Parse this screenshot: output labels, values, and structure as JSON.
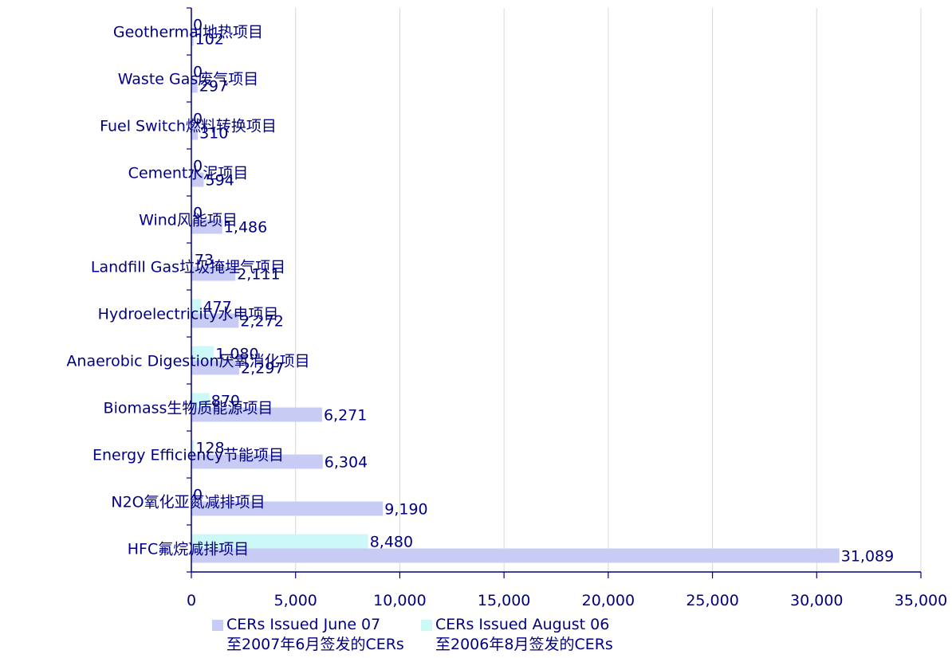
{
  "chart_data": {
    "type": "bar",
    "orientation": "horizontal",
    "categories": [
      "Geothermal地热项目",
      "Waste Gas废气项目",
      "Fuel Switch燃料转换项目",
      "Cement水泥项目",
      "Wind风能项目",
      "Landfill Gas垃圾掩埋气项目",
      "Hydroelectricity水电项目",
      "Anaerobic Digestion厌氧消化项目",
      "Biomass生物质能源项目",
      "Energy Efficiency节能项目",
      "N2O氧化亚氮减排项目",
      "HFC氟烷减排项目"
    ],
    "series": [
      {
        "name": "CERs Issued June 07",
        "name_line2": "至2007年6月签发的CERs",
        "color": "#c8ccf4",
        "values": [
          102,
          297,
          310,
          594,
          1486,
          2111,
          2272,
          2297,
          6271,
          6304,
          9190,
          31089
        ],
        "labels": [
          "102",
          "297",
          "310",
          "594",
          "1,486",
          "2,111",
          "2,272",
          "2,297",
          "6,271",
          "6,304",
          "9,190",
          "31,089"
        ]
      },
      {
        "name": "CERs Issued August 06",
        "name_line2": "至2006年8月签发的CERs",
        "color": "#ccf8f8",
        "values": [
          0,
          0,
          0,
          0,
          0,
          73,
          477,
          1080,
          870,
          128,
          0,
          8480
        ],
        "labels": [
          "0",
          "0",
          "0",
          "0",
          "0",
          "73",
          "477",
          "1,080",
          "870",
          "128",
          "0",
          "8,480"
        ]
      }
    ],
    "xlim": [
      0,
      35000
    ],
    "xticks": [
      0,
      5000,
      10000,
      15000,
      20000,
      25000,
      30000,
      35000
    ],
    "xtick_labels": [
      "0",
      "5,000",
      "10,000",
      "15,000",
      "20,000",
      "25,000",
      "30,000",
      "35,000"
    ],
    "grid": true,
    "legend_position": "bottom",
    "text_color": "#000080"
  }
}
